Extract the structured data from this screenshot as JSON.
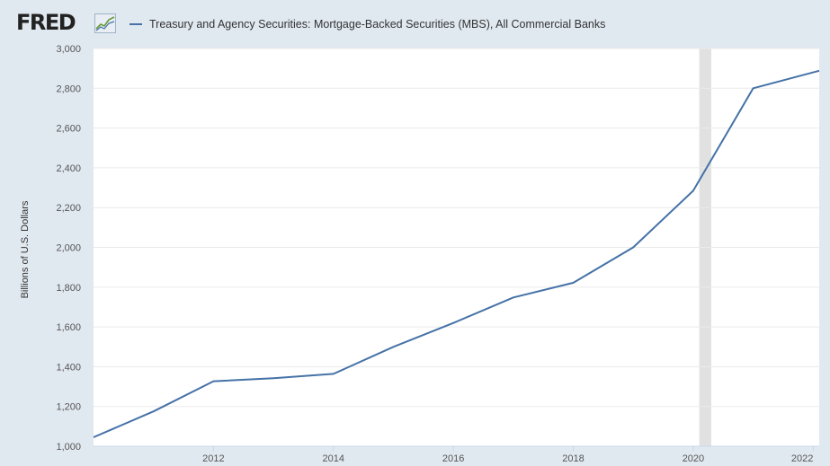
{
  "header": {
    "logo_text": "FRED",
    "legend_label": "Treasury and Agency Securities: Mortgage-Backed Securities (MBS), All Commercial Banks"
  },
  "colors": {
    "line": "#4572a7",
    "plot_bg": "#ffffff",
    "page_bg": "#e1e9f0",
    "recession": "#e1e1e1",
    "grid": "#eaeaea"
  },
  "chart_data": {
    "type": "line",
    "title": "",
    "xlabel": "",
    "ylabel": "Billions of U.S. Dollars",
    "xlim": [
      2010.0,
      2022.1
    ],
    "ylim": [
      1000,
      3000
    ],
    "grid": "horizontal",
    "legend_position": "top",
    "y_ticks": [
      "1,000",
      "1,200",
      "1,400",
      "1,600",
      "1,800",
      "2,000",
      "2,200",
      "2,400",
      "2,600",
      "2,800",
      "3,000"
    ],
    "x_ticks": [
      "2012",
      "2014",
      "2016",
      "2018",
      "2020",
      "2022"
    ],
    "recession_shading": [
      [
        2020.1,
        2020.3
      ]
    ],
    "series": [
      {
        "name": "Treasury and Agency Securities: Mortgage-Backed Securities (MBS), All Commercial Banks",
        "x": [
          2010,
          2011,
          2012,
          2013,
          2014,
          2015,
          2016,
          2017,
          2018,
          2019,
          2020,
          2021,
          2022.1
        ],
        "y": [
          1045,
          1175,
          1327,
          1342,
          1364,
          1500,
          1620,
          1748,
          1822,
          2000,
          2285,
          2800,
          2888
        ]
      }
    ]
  }
}
